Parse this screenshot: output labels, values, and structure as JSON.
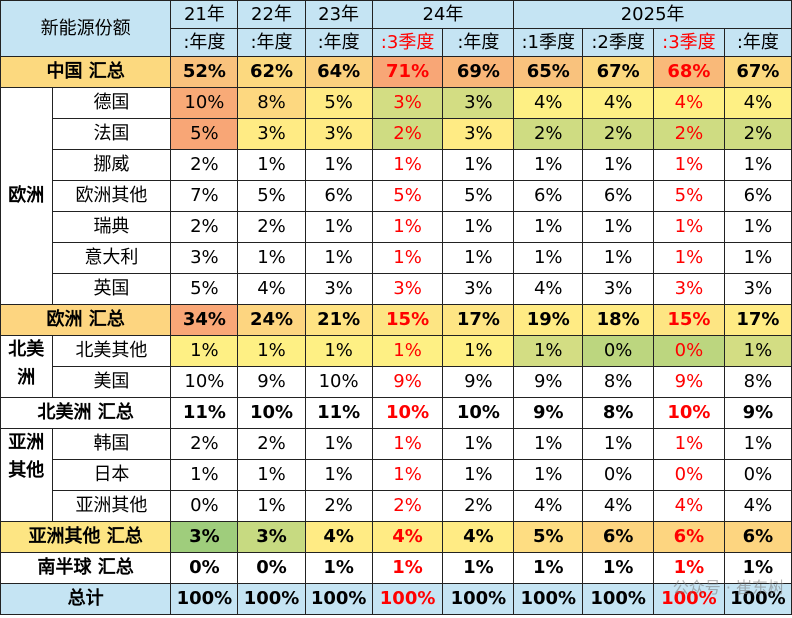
{
  "header": {
    "corner": "新能源份额",
    "years": [
      "21年",
      "22年",
      "23年",
      "24年",
      "2025年"
    ],
    "subs": [
      ":年度",
      ":年度",
      ":年度",
      ":3季度",
      ":年度",
      ":1季度",
      ":2季度",
      ":3季度",
      ":年度"
    ]
  },
  "groups": {
    "europe": "欧洲",
    "north_america": "北美洲",
    "asia_other": "亚洲其他"
  },
  "rows": [
    {
      "label": "中国 汇总",
      "cells": [
        "52%",
        "62%",
        "64%",
        "71%",
        "69%",
        "65%",
        "67%",
        "68%",
        "67%"
      ]
    },
    {
      "label": "德国",
      "cells": [
        "10%",
        "8%",
        "5%",
        "3%",
        "3%",
        "4%",
        "4%",
        "4%",
        "4%"
      ]
    },
    {
      "label": "法国",
      "cells": [
        "5%",
        "3%",
        "3%",
        "2%",
        "3%",
        "2%",
        "2%",
        "2%",
        "2%"
      ]
    },
    {
      "label": "挪威",
      "cells": [
        "2%",
        "1%",
        "1%",
        "1%",
        "1%",
        "1%",
        "1%",
        "1%",
        "1%"
      ]
    },
    {
      "label": "欧洲其他",
      "cells": [
        "7%",
        "5%",
        "6%",
        "5%",
        "5%",
        "6%",
        "6%",
        "5%",
        "6%"
      ]
    },
    {
      "label": "瑞典",
      "cells": [
        "2%",
        "2%",
        "1%",
        "1%",
        "1%",
        "1%",
        "1%",
        "1%",
        "1%"
      ]
    },
    {
      "label": "意大利",
      "cells": [
        "3%",
        "1%",
        "1%",
        "1%",
        "1%",
        "1%",
        "1%",
        "1%",
        "1%"
      ]
    },
    {
      "label": "英国",
      "cells": [
        "5%",
        "4%",
        "3%",
        "3%",
        "3%",
        "4%",
        "3%",
        "3%",
        "3%"
      ]
    },
    {
      "label": "欧洲 汇总",
      "cells": [
        "34%",
        "24%",
        "21%",
        "15%",
        "17%",
        "19%",
        "18%",
        "15%",
        "17%"
      ]
    },
    {
      "label": "北美其他",
      "cells": [
        "1%",
        "1%",
        "1%",
        "1%",
        "1%",
        "1%",
        "0%",
        "0%",
        "1%"
      ]
    },
    {
      "label": "美国",
      "cells": [
        "10%",
        "9%",
        "10%",
        "9%",
        "9%",
        "9%",
        "8%",
        "9%",
        "8%"
      ]
    },
    {
      "label": "北美洲 汇总",
      "cells": [
        "11%",
        "10%",
        "11%",
        "10%",
        "10%",
        "9%",
        "8%",
        "10%",
        "9%"
      ]
    },
    {
      "label": "韩国",
      "cells": [
        "2%",
        "2%",
        "1%",
        "1%",
        "1%",
        "1%",
        "1%",
        "1%",
        "1%"
      ]
    },
    {
      "label": "日本",
      "cells": [
        "1%",
        "1%",
        "1%",
        "1%",
        "1%",
        "1%",
        "0%",
        "0%",
        "0%"
      ]
    },
    {
      "label": "亚洲其他",
      "cells": [
        "0%",
        "1%",
        "2%",
        "2%",
        "2%",
        "4%",
        "4%",
        "4%",
        "4%"
      ]
    },
    {
      "label": "亚洲其他 汇总",
      "cells": [
        "3%",
        "3%",
        "4%",
        "4%",
        "4%",
        "5%",
        "6%",
        "6%",
        "6%"
      ]
    },
    {
      "label": "南半球 汇总",
      "cells": [
        "0%",
        "0%",
        "1%",
        "1%",
        "1%",
        "1%",
        "1%",
        "1%",
        "1%"
      ]
    },
    {
      "label": "总计",
      "cells": [
        "100%",
        "100%",
        "100%",
        "100%",
        "100%",
        "100%",
        "100%",
        "100%",
        "100%"
      ]
    }
  ],
  "fills": {
    "0": [
      "#f9c27d",
      "#fcd97f",
      "#fbd07e",
      "#f8a676",
      "#f9b679",
      "#f9c27d",
      "#fcd97f",
      "#f9b979",
      "#fcd97f"
    ],
    "1": [
      "#f8aa77",
      "#fdd880",
      "#ffeb84",
      "#d3dd83",
      "#d3dd83",
      "#fef084",
      "#fef084",
      "#fef084",
      "#fef084"
    ],
    "2": [
      "#f8a676",
      "#ffeb84",
      "#ffeb84",
      "#cfdc82",
      "#ffeb84",
      "#cfdc82",
      "#cfdc82",
      "#cfdc82",
      "#cfdc82"
    ],
    "8": [
      "#f9a777",
      "#fdd580",
      "#ffe383",
      "#fde583",
      "#fee584",
      "#ffeb84",
      "#ffeb84",
      "#fde583",
      "#ffeb84"
    ],
    "9": [
      "#fef084",
      "#fef084",
      "#fef084",
      "#fef084",
      "#fef084",
      "#d3dd83",
      "#bcd67f",
      "#bcd67f",
      "#d3dd83"
    ],
    "15": [
      "#9fcd7c",
      "#c7da81",
      "#ffeb84",
      "#ffeb84",
      "#ffeb84",
      "#fedd82",
      "#fdd580",
      "#fdd580",
      "#fdd580"
    ]
  }
}
